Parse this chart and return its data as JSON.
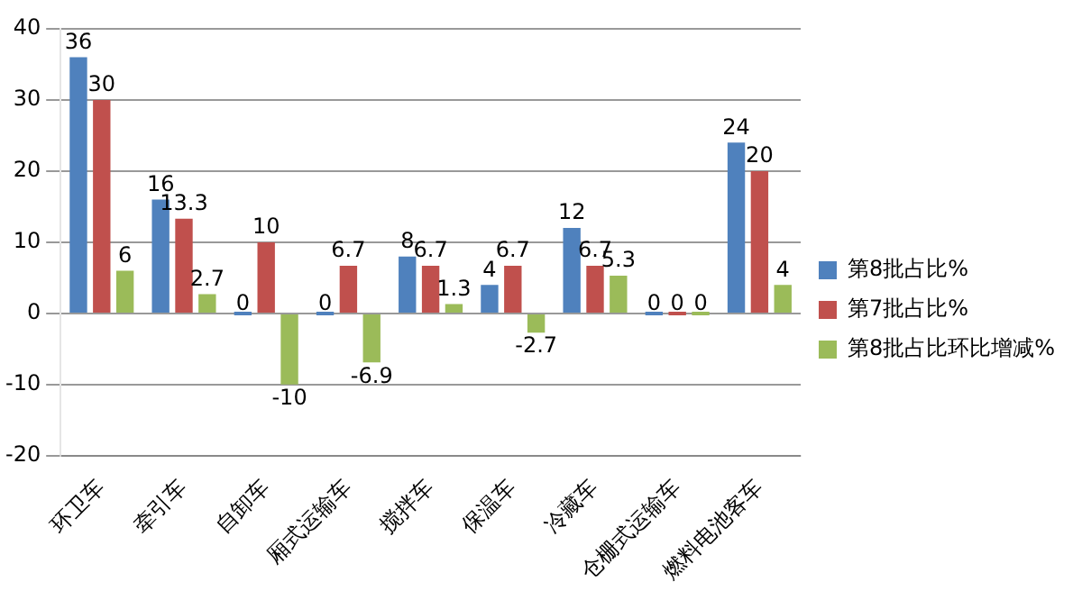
{
  "chart_data": {
    "type": "bar",
    "categories": [
      "环卫车",
      "牵引车",
      "自卸车",
      "厢式运输车",
      "搅拌车",
      "保温车",
      "冷藏车",
      "仓栅式运输车",
      "燃料电池客车"
    ],
    "series": [
      {
        "name": "第8批占比%",
        "color": "#4f81bd",
        "values": [
          36,
          16,
          0,
          0,
          8,
          4,
          12,
          0,
          24
        ]
      },
      {
        "name": "第7批占比%",
        "color": "#c0504d",
        "values": [
          30,
          13.3,
          10,
          6.7,
          6.7,
          6.7,
          6.7,
          0,
          20
        ]
      },
      {
        "name": "第8批占比环比增减%",
        "color": "#9bbb59",
        "values": [
          6,
          2.7,
          -10,
          -6.9,
          1.3,
          -2.7,
          5.3,
          0,
          4
        ]
      }
    ],
    "ylim": [
      -20,
      40
    ],
    "yticks": [
      -20,
      -10,
      0,
      10,
      20,
      30,
      40
    ],
    "grid": "y",
    "legend": "right",
    "data_labels": true
  }
}
